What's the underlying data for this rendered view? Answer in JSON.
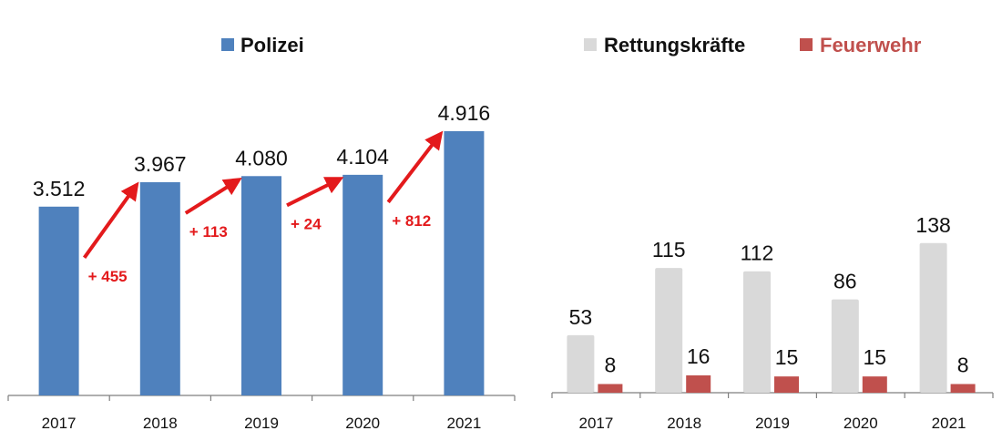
{
  "colors": {
    "polizei": "#4f81bd",
    "rettung": "#d9d9d9",
    "feuerwehr": "#c0504d",
    "arrow": "#e31a1c",
    "axis": "#7f7f7f"
  },
  "chart_data": [
    {
      "type": "bar",
      "categories": [
        "2017",
        "2018",
        "2019",
        "2020",
        "2021"
      ],
      "series": [
        {
          "name": "Polizei",
          "values": [
            3512,
            3967,
            4080,
            4104,
            4916
          ],
          "labels": [
            "3.512",
            "3.967",
            "4.080",
            "4.104",
            "4.916"
          ]
        }
      ],
      "annotations": [
        {
          "from": "2017",
          "to": "2018",
          "text": "+ 455"
        },
        {
          "from": "2018",
          "to": "2019",
          "text": "+ 113"
        },
        {
          "from": "2019",
          "to": "2020",
          "text": "+ 24"
        },
        {
          "from": "2020",
          "to": "2021",
          "text": "+ 812"
        }
      ],
      "legend_position": "top",
      "grid": false
    },
    {
      "type": "bar",
      "categories": [
        "2017",
        "2018",
        "2019",
        "2020",
        "2021"
      ],
      "series": [
        {
          "name": "Rettungskräfte",
          "values": [
            53,
            115,
            112,
            86,
            138
          ]
        },
        {
          "name": "Feuerwehr",
          "values": [
            8,
            16,
            15,
            15,
            8
          ]
        }
      ],
      "legend_position": "top",
      "grid": false
    }
  ]
}
